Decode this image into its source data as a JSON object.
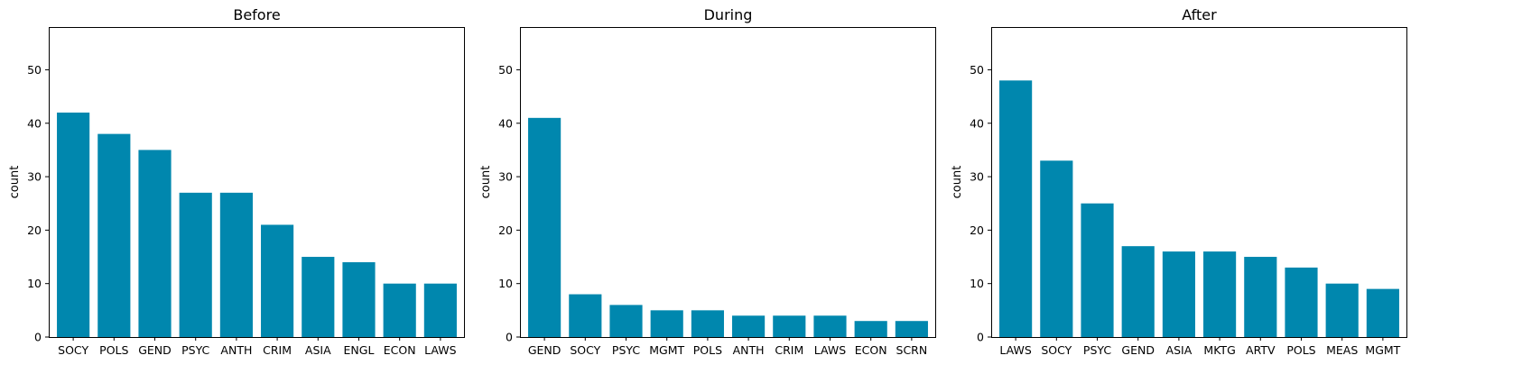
{
  "chart_data": [
    {
      "type": "bar",
      "title": "Before",
      "xlabel": "",
      "ylabel": "count",
      "categories": [
        "SOCY",
        "POLS",
        "GEND",
        "PSYC",
        "ANTH",
        "CRIM",
        "ASIA",
        "ENGL",
        "ECON",
        "LAWS"
      ],
      "values": [
        42,
        38,
        35,
        27,
        27,
        21,
        15,
        14,
        10,
        10
      ],
      "ylim": [
        0,
        58
      ],
      "yticks": [
        0,
        10,
        20,
        30,
        40,
        50
      ],
      "color": "#0087ae",
      "grid": false
    },
    {
      "type": "bar",
      "title": "During",
      "xlabel": "",
      "ylabel": "count",
      "categories": [
        "GEND",
        "SOCY",
        "PSYC",
        "MGMT",
        "POLS",
        "ANTH",
        "CRIM",
        "LAWS",
        "ECON",
        "SCRN"
      ],
      "values": [
        41,
        8,
        6,
        5,
        5,
        4,
        4,
        4,
        3,
        3
      ],
      "ylim": [
        0,
        58
      ],
      "yticks": [
        0,
        10,
        20,
        30,
        40,
        50
      ],
      "color": "#0087ae",
      "grid": false
    },
    {
      "type": "bar",
      "title": "After",
      "xlabel": "",
      "ylabel": "count",
      "categories": [
        "LAWS",
        "SOCY",
        "PSYC",
        "GEND",
        "ASIA",
        "MKTG",
        "ARTV",
        "POLS",
        "MEAS",
        "MGMT"
      ],
      "values": [
        48,
        33,
        25,
        17,
        16,
        16,
        15,
        13,
        10,
        9
      ],
      "ylim": [
        0,
        58
      ],
      "yticks": [
        0,
        10,
        20,
        30,
        40,
        50
      ],
      "color": "#0087ae",
      "grid": false
    }
  ]
}
